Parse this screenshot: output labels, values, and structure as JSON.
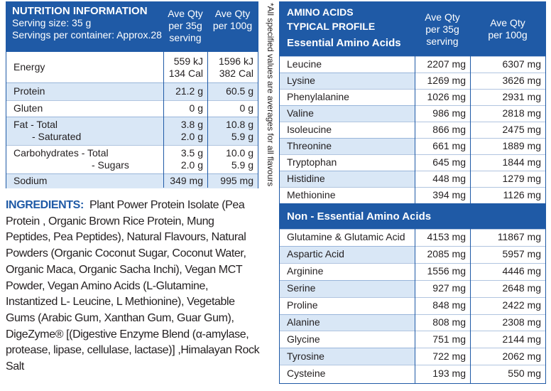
{
  "nutrition": {
    "title": "NUTRITION INFORMATION",
    "serving_size": "Serving size:  35 g",
    "servings": "Servings per container: Approx.28",
    "columns": [
      [
        "Ave Qty",
        "per 35g",
        "serving"
      ],
      [
        "Ave Qty",
        "per 100g"
      ]
    ],
    "rows": [
      {
        "name": [
          "Energy"
        ],
        "per_serving": [
          "559 kJ",
          "134 Cal"
        ],
        "per_100g": [
          "1596 kJ",
          "382 Cal"
        ]
      },
      {
        "name": [
          "Protein"
        ],
        "per_serving": [
          "21.2 g"
        ],
        "per_100g": [
          "60.5 g"
        ]
      },
      {
        "name": [
          "Gluten"
        ],
        "per_serving": [
          "0 g"
        ],
        "per_100g": [
          "0 g"
        ]
      },
      {
        "name": [
          "Fat - Total",
          "- Saturated"
        ],
        "per_serving": [
          "3.8 g",
          "2.0 g"
        ],
        "per_100g": [
          "10.8 g",
          "5.9 g"
        ]
      },
      {
        "name": [
          "Carbohydrates - Total",
          "- Sugars"
        ],
        "per_serving": [
          "3.5 g",
          "2.0 g"
        ],
        "per_100g": [
          "10.0 g",
          "5.9 g"
        ]
      },
      {
        "name": [
          "Sodium"
        ],
        "per_serving": [
          "349 mg"
        ],
        "per_100g": [
          "995 mg"
        ]
      }
    ]
  },
  "note": "*All specified values are averages for all flavours",
  "ingredients": {
    "label": "INGREDIENTS:",
    "text": "Plant Power Protein Isolate (Pea Protein , Organic Brown Rice Protein, Mung Peptides, Pea Peptides), Natural Flavours, Natural Powders (Organic Coconut Sugar, Coconut Water, Organic Maca, Organic Sacha Inchi), Vegan MCT Powder, Vegan Amino Acids (L-Glutamine, Instantized L- Leucine, L Methionine), Vegetable Gums (Arabic Gum, Xanthan Gum, Guar Gum), DigeZyme® [(Digestive Enzyme Blend (α-amylase, protease, lipase, cellulase, lactase)] ,Himalayan Rock Salt"
  },
  "amino": {
    "title": [
      "AMINO ACIDS",
      "TYPICAL PROFILE"
    ],
    "essential_heading": "Essential Amino Acids",
    "columns": [
      [
        "Ave Qty",
        "per 35g",
        "serving"
      ],
      [
        "Ave Qty",
        "per 100g"
      ]
    ],
    "essential": [
      [
        "Leucine",
        "2207 mg",
        "6307 mg"
      ],
      [
        "Lysine",
        "1269 mg",
        "3626 mg"
      ],
      [
        "Phenylalanine",
        "1026 mg",
        "2931 mg"
      ],
      [
        "Valine",
        "986 mg",
        "2818 mg"
      ],
      [
        "Isoleucine",
        "866 mg",
        "2475 mg"
      ],
      [
        "Threonine",
        "661 mg",
        "1889 mg"
      ],
      [
        "Tryptophan",
        "645 mg",
        "1844 mg"
      ],
      [
        "Histidine",
        "448 mg",
        "1279 mg"
      ],
      [
        "Methionine",
        "394 mg",
        "1126 mg"
      ]
    ],
    "non_essential_heading": "Non - Essential Amino Acids",
    "non_essential": [
      [
        "Glutamine & Glutamic Acid",
        "4153 mg",
        "11867 mg"
      ],
      [
        "Aspartic Acid",
        "2085 mg",
        "5957 mg"
      ],
      [
        "Arginine",
        "1556 mg",
        "4446 mg"
      ],
      [
        "Serine",
        "927 mg",
        "2648 mg"
      ],
      [
        "Proline",
        "848 mg",
        "2422 mg"
      ],
      [
        "Alanine",
        "808 mg",
        "2308 mg"
      ],
      [
        "Glycine",
        "751 mg",
        "2144 mg"
      ],
      [
        "Tyrosine",
        "722 mg",
        "2062 mg"
      ],
      [
        "Cysteine",
        "193 mg",
        "550 mg"
      ]
    ]
  }
}
